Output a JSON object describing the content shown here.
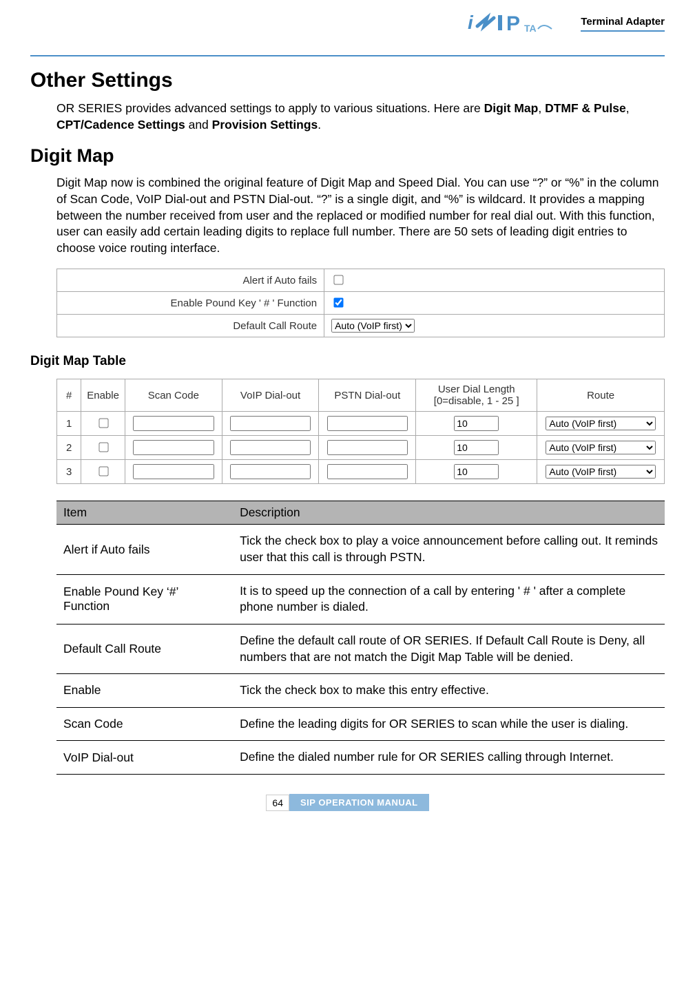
{
  "header": {
    "terminal_adapter": "Terminal Adapter"
  },
  "h1": "Other Settings",
  "intro_prefix": "OR SERIES provides advanced settings to apply to various situations. Here are ",
  "intro_b1": "Digit Map",
  "intro_sep1": ", ",
  "intro_b2": "DTMF & Pulse",
  "intro_sep2": ", ",
  "intro_b3": "CPT/Cadence Settings",
  "intro_mid": " and ",
  "intro_b4": "Provision Settings",
  "intro_suffix": ".",
  "h2": "Digit Map",
  "para1": "Digit Map now is combined the original feature of Digit Map and Speed Dial. You can use “?” or “%” in the column of Scan Code, VoIP Dial-out and PSTN Dial-out. “?” is a single digit, and “%” is wildcard. It provides a mapping between the number received from user and the replaced or modified number for real dial out. With this function, user can easily add certain leading digits to replace full number. There are 50 sets of leading digit entries to choose voice routing interface.",
  "settings": {
    "alert_label": "Alert if Auto fails",
    "alert_checked": false,
    "pound_label": "Enable Pound Key ' # ' Function",
    "pound_checked": true,
    "route_label": "Default Call Route",
    "route_value": "Auto (VoIP first)"
  },
  "dm_heading": "Digit Map Table",
  "dm_cols": {
    "num": "#",
    "enable": "Enable",
    "scan": "Scan Code",
    "voip": "VoIP Dial-out",
    "pstn": "PSTN Dial-out",
    "len": "User Dial Length [0=disable, 1 - 25 ]",
    "route": "Route"
  },
  "dm_rows": [
    {
      "n": "1",
      "enable": false,
      "scan": "",
      "voip": "",
      "pstn": "",
      "len": "10",
      "route": "Auto (VoIP first)"
    },
    {
      "n": "2",
      "enable": false,
      "scan": "",
      "voip": "",
      "pstn": "",
      "len": "10",
      "route": "Auto (VoIP first)"
    },
    {
      "n": "3",
      "enable": false,
      "scan": "",
      "voip": "",
      "pstn": "",
      "len": "10",
      "route": "Auto (VoIP first)"
    }
  ],
  "desc_head_item": "Item",
  "desc_head_desc": "Description",
  "desc_rows": [
    {
      "item": "Alert if Auto fails",
      "desc": "Tick the check box to play a voice announcement before calling out. It reminds user that this call is through PSTN.",
      "justify": true
    },
    {
      "item": "Enable Pound Key ‘#’ Function",
      "desc": "It is to speed up the connection of a call by entering ' # ' after a complete phone number is dialed.",
      "justify": false
    },
    {
      "item": "Default Call Route",
      "desc": "Define the default call route of OR SERIES. If Default Call Route is Deny, all numbers that are not match the Digit Map Table will be denied.",
      "justify": false
    },
    {
      "item": "Enable",
      "desc": "Tick the check box to make this entry effective.",
      "justify": false
    },
    {
      "item": "Scan Code",
      "desc": "Define the leading digits for OR SERIES to scan while the user is dialing.",
      "justify": false
    },
    {
      "item": "VoIP Dial-out",
      "desc": "Define the dialed number rule for OR SERIES calling through Internet.",
      "justify": false
    }
  ],
  "footer": {
    "page": "64",
    "manual": "SIP OPERATION MANUAL"
  },
  "colors": {
    "accent": "#4a8fc8",
    "desc_header_bg": "#b4b4b4",
    "footer_bg": "#8db9dd"
  }
}
